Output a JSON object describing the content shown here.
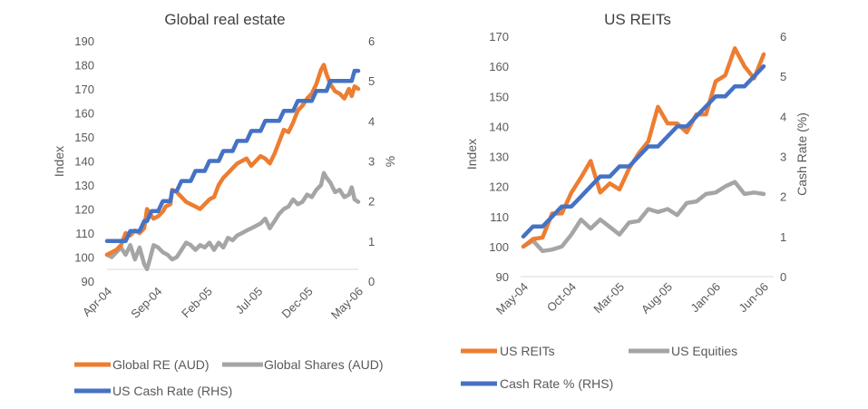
{
  "chart_data": [
    {
      "type": "line",
      "title": "Global real estate",
      "ylabel": "Index",
      "y2label": "%",
      "ylim": [
        90,
        190
      ],
      "yticks": [
        "90",
        "100",
        "110",
        "120",
        "130",
        "140",
        "150",
        "160",
        "170",
        "180",
        "190"
      ],
      "y2lim": [
        0,
        6
      ],
      "y2ticks": [
        "0",
        "1",
        "2",
        "3",
        "4",
        "5",
        "6"
      ],
      "xlim": [
        0,
        27
      ],
      "xticks": [
        "Apr-04",
        "Sep-04",
        "Feb-05",
        "Jul-05",
        "Dec-05",
        "May-06"
      ],
      "legend": "bottom",
      "series": [
        {
          "name": "Global RE (AUD)",
          "axis": "left",
          "color": "#ED7D31",
          "x": [
            0,
            1,
            1.5,
            2,
            2.5,
            3,
            3.5,
            4,
            4.3,
            4.8,
            5,
            5.5,
            6,
            6.3,
            6.8,
            7,
            7.5,
            8,
            8.5,
            9,
            9.5,
            10,
            10.5,
            11,
            11.5,
            12,
            12.5,
            13,
            13.5,
            14,
            14.5,
            15,
            15.5,
            16,
            16.5,
            17,
            17.5,
            18,
            18.5,
            19,
            19.5,
            20,
            20.5,
            21,
            21.5,
            22,
            22.5,
            23,
            23.3,
            23.6,
            24,
            24.5,
            25,
            25.5,
            26,
            26.3,
            26.6,
            27
          ],
          "y": [
            101,
            103,
            105,
            110,
            109,
            111,
            110,
            112,
            120,
            117,
            116,
            117,
            119,
            121,
            122,
            128,
            127,
            125,
            123,
            122,
            121,
            120,
            122,
            124,
            125,
            130,
            133,
            135,
            137,
            139,
            140,
            141,
            138,
            140,
            142,
            141,
            139,
            143,
            148,
            153,
            152,
            156,
            161,
            163,
            166,
            168,
            172,
            178,
            180,
            176,
            172,
            169,
            168,
            166,
            170,
            167,
            171,
            170
          ]
        },
        {
          "name": "Global Shares (AUD)",
          "axis": "left",
          "color": "#A5A5A5",
          "x": [
            0,
            0.5,
            1,
            1.5,
            2,
            2.5,
            3,
            3.5,
            4,
            4.3,
            4.6,
            5,
            5.5,
            6,
            6.5,
            7,
            7.5,
            8,
            8.5,
            9,
            9.5,
            10,
            10.5,
            11,
            11.5,
            12,
            12.5,
            13,
            13.5,
            14,
            14.5,
            15,
            15.5,
            16,
            16.5,
            17,
            17.5,
            18,
            18.5,
            19,
            19.5,
            20,
            20.5,
            21,
            21.5,
            22,
            22.5,
            23,
            23.3,
            23.6,
            24,
            24.5,
            25,
            25.5,
            26,
            26.3,
            26.6,
            27
          ],
          "y": [
            101,
            100,
            102,
            104,
            101,
            105,
            99,
            104,
            97,
            95,
            99,
            105,
            104,
            102,
            101,
            99,
            100,
            103,
            106,
            105,
            103,
            105,
            104,
            106,
            103,
            106,
            104,
            108,
            107,
            109,
            110,
            111,
            112,
            113,
            114,
            116,
            112,
            115,
            118,
            120,
            121,
            124,
            122,
            123,
            126,
            125,
            128,
            130,
            135,
            133,
            131,
            127,
            128,
            125,
            126,
            129,
            124,
            123
          ]
        },
        {
          "name": "US Cash Rate (RHS)",
          "axis": "right",
          "color": "#4472C4",
          "x": [
            0,
            1,
            1.5,
            2,
            2.5,
            3,
            3.5,
            4,
            4.3,
            4.8,
            5,
            5.5,
            6,
            6.3,
            6.8,
            7,
            7.5,
            8,
            8.5,
            9,
            9.5,
            10,
            10.5,
            11,
            11.5,
            12,
            12.5,
            13,
            13.5,
            14,
            14.5,
            15,
            15.5,
            16,
            16.5,
            17,
            17.5,
            18,
            18.5,
            19,
            19.5,
            20,
            20.5,
            21,
            21.5,
            22,
            22.5,
            23,
            23.3,
            23.6,
            24,
            24.5,
            25,
            25.5,
            26,
            26.3,
            26.6,
            27
          ],
          "y": [
            1,
            1,
            1,
            1,
            1.25,
            1.25,
            1.25,
            1.5,
            1.5,
            1.75,
            1.75,
            1.75,
            2,
            2,
            2,
            2.25,
            2.25,
            2.5,
            2.5,
            2.5,
            2.75,
            2.75,
            2.75,
            3,
            3,
            3,
            3.25,
            3.25,
            3.25,
            3.5,
            3.5,
            3.5,
            3.75,
            3.75,
            3.75,
            4,
            4,
            4,
            4,
            4.25,
            4.25,
            4.25,
            4.5,
            4.5,
            4.5,
            4.5,
            4.75,
            4.75,
            4.75,
            4.75,
            5,
            5,
            5,
            5,
            5,
            5,
            5.25,
            5.25
          ]
        }
      ]
    },
    {
      "type": "line",
      "title": "US REITs",
      "ylabel": "Index",
      "y2label": "Cash Rate (%)",
      "ylim": [
        90,
        170
      ],
      "yticks": [
        "90",
        "100",
        "110",
        "120",
        "130",
        "140",
        "150",
        "160",
        "170"
      ],
      "y2lim": [
        0,
        6
      ],
      "y2ticks": [
        "0",
        "1",
        "2",
        "3",
        "4",
        "5",
        "6"
      ],
      "xlim": [
        0,
        25
      ],
      "xticks": [
        "May-04",
        "Oct-04",
        "Mar-05",
        "Aug-05",
        "Jan-06",
        "Jun-06"
      ],
      "legend": "bottom",
      "series": [
        {
          "name": "US REITs",
          "axis": "left",
          "color": "#ED7D31",
          "x": [
            0,
            1,
            2,
            3,
            4,
            5,
            6,
            7,
            8,
            9,
            10,
            11,
            12,
            13,
            14,
            15,
            16,
            17,
            18,
            19,
            20,
            21,
            22,
            23,
            24,
            25
          ],
          "y": [
            100,
            102.5,
            103,
            111,
            111,
            118,
            123,
            128.5,
            118,
            121,
            119,
            126,
            131,
            135,
            146.5,
            141,
            141,
            138,
            144,
            144,
            155,
            157,
            166,
            160,
            156,
            164
          ]
        },
        {
          "name": "US Equities",
          "axis": "left",
          "color": "#A5A5A5",
          "x": [
            0,
            1,
            2,
            3,
            4,
            5,
            6,
            7,
            8,
            9,
            10,
            11,
            12,
            13,
            14,
            15,
            16,
            17,
            18,
            19,
            20,
            21,
            22,
            23,
            24,
            25
          ],
          "y": [
            100,
            102,
            98.5,
            99,
            100,
            104,
            109,
            106,
            109,
            106.5,
            104,
            108,
            108.5,
            112.5,
            111.5,
            112.5,
            110.5,
            114.5,
            115,
            117.5,
            118,
            120,
            121.5,
            117.5,
            118,
            117.5
          ]
        },
        {
          "name": "Cash Rate % (RHS)",
          "axis": "right",
          "color": "#4472C4",
          "x": [
            0,
            1,
            2,
            3,
            4,
            5,
            6,
            7,
            8,
            9,
            10,
            11,
            12,
            13,
            14,
            15,
            16,
            17,
            18,
            19,
            20,
            21,
            22,
            23,
            24,
            25
          ],
          "y": [
            1,
            1.25,
            1.25,
            1.5,
            1.75,
            1.75,
            2,
            2.25,
            2.5,
            2.5,
            2.75,
            2.75,
            3,
            3.25,
            3.25,
            3.5,
            3.75,
            3.75,
            4,
            4.25,
            4.5,
            4.5,
            4.75,
            4.75,
            5,
            5.25
          ]
        }
      ]
    }
  ]
}
